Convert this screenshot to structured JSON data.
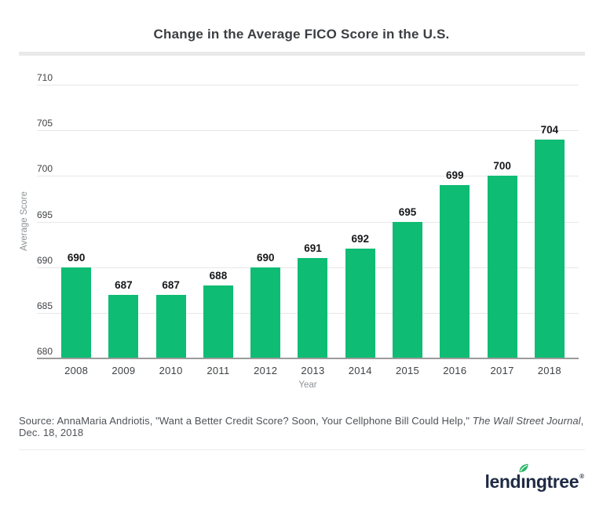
{
  "chart_data": {
    "type": "bar",
    "title": "Change in the Average FICO Score in the U.S.",
    "categories": [
      "2008",
      "2009",
      "2010",
      "2011",
      "2012",
      "2013",
      "2014",
      "2015",
      "2016",
      "2017",
      "2018"
    ],
    "values": [
      690,
      687,
      687,
      688,
      690,
      691,
      692,
      695,
      699,
      700,
      704
    ],
    "xlabel": "Year",
    "ylabel": "Average Score",
    "ylim": [
      680,
      710
    ],
    "yticks": [
      680,
      685,
      690,
      695,
      700,
      705,
      710
    ],
    "grid": true,
    "legend": false,
    "data_labels": true,
    "bar_color": "#0ebc74",
    "gridline_color": "#e7e7e7",
    "baseline_color": "#9b9b9b"
  },
  "source_line": {
    "prefix": "Source: AnnaMaria Andriotis, \"Want a Better Credit Score? Soon, Your Cellphone Bill Could Help,\" ",
    "italic": "The Wall Street Journal",
    "suffix": ", Dec. 18, 2018"
  },
  "logo": {
    "brand": "lendingtree",
    "wordmark_pre": "lend",
    "wordmark_i": "ı",
    "wordmark_post": "ngtree",
    "registered": "®",
    "navy": "#1f2a44",
    "green": "#2cb669"
  }
}
